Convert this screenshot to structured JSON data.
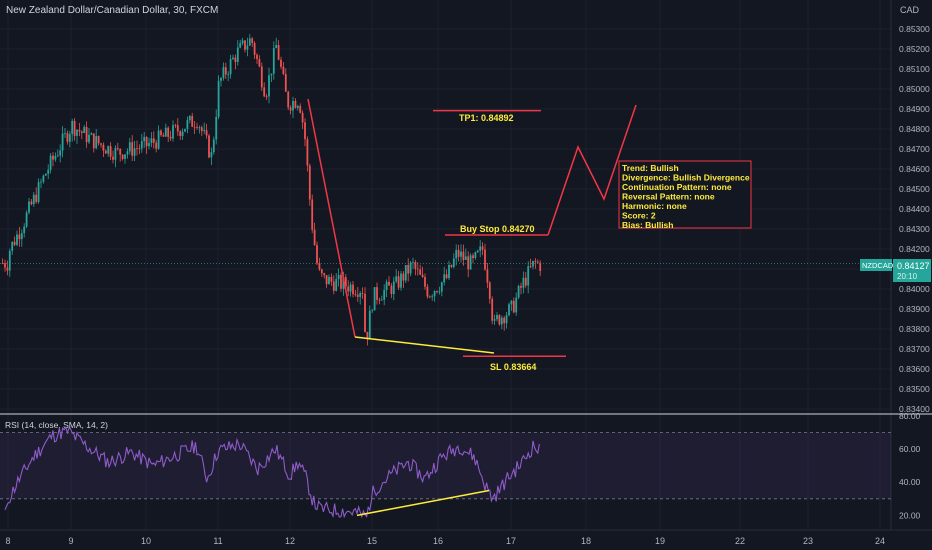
{
  "header": {
    "symbol_title": "New Zealand Dollar/Canadian Dollar, 30, FXCM",
    "currency": "CAD"
  },
  "price_axis": {
    "ticks": [
      "0.85300",
      "0.85200",
      "0.85100",
      "0.85000",
      "0.84900",
      "0.84800",
      "0.84700",
      "0.84600",
      "0.84500",
      "0.84400",
      "0.84300",
      "0.84200",
      "0.84100",
      "0.84000",
      "0.83900",
      "0.83800",
      "0.83700",
      "0.83600",
      "0.83500",
      "0.83400"
    ],
    "current_label": "NZDCAD",
    "current_price": "0.84127",
    "countdown": "20:10"
  },
  "time_axis": {
    "labels": [
      "8",
      "9",
      "10",
      "11",
      "12",
      "15",
      "16",
      "17",
      "18",
      "19",
      "22",
      "23",
      "24"
    ]
  },
  "annotations": {
    "tp_label": "TP1: 0.84892",
    "buy_label": "Buy Stop 0.84270",
    "sl_label": "SL 0.83664",
    "analysis_lines": [
      "Trend: Bullish",
      "Divergence: Bullish Divergence",
      "Continuation Pattern: none",
      "Reversal Pattern: none",
      "Harmonic: none",
      "Score: 2",
      "Bias: Bullish"
    ]
  },
  "rsi_pane": {
    "title": "RSI (14, close, SMA, 14, 2)",
    "ticks": [
      "80.00",
      "60.00",
      "40.00",
      "20.00"
    ]
  },
  "colors": {
    "background": "#131722",
    "up": "#26a69a",
    "down": "#ef5350",
    "rsi_line": "#8e5cc9",
    "divergence": "#ffeb3b",
    "annotation": "#f23645"
  },
  "chart_data": [
    {
      "type": "candlestick",
      "title": "New Zealand Dollar/Canadian Dollar, 30, FXCM",
      "ylabel": "CAD",
      "ylim": [
        0.834,
        0.8536
      ],
      "x_day_labels": [
        "8",
        "9",
        "10",
        "11",
        "12",
        "15",
        "16",
        "17",
        "18",
        "19",
        "22",
        "23",
        "24"
      ],
      "close_path": [
        {
          "x": 7.9,
          "y": 0.8413
        },
        {
          "x": 8.2,
          "y": 0.8431
        },
        {
          "x": 8.6,
          "y": 0.8459
        },
        {
          "x": 9.0,
          "y": 0.8482
        },
        {
          "x": 9.25,
          "y": 0.8475
        },
        {
          "x": 9.6,
          "y": 0.8468
        },
        {
          "x": 10.0,
          "y": 0.8472
        },
        {
          "x": 10.35,
          "y": 0.8478
        },
        {
          "x": 10.7,
          "y": 0.8485
        },
        {
          "x": 10.9,
          "y": 0.8466
        },
        {
          "x": 11.0,
          "y": 0.8503
        },
        {
          "x": 11.25,
          "y": 0.8518
        },
        {
          "x": 11.45,
          "y": 0.8525
        },
        {
          "x": 11.65,
          "y": 0.8498
        },
        {
          "x": 11.8,
          "y": 0.8522
        },
        {
          "x": 11.95,
          "y": 0.8493
        },
        {
          "x": 12.3,
          "y": 0.8495
        },
        {
          "x": 12.5,
          "y": 0.8478
        },
        {
          "x": 12.75,
          "y": 0.8435
        },
        {
          "x": 13.0,
          "y": 0.8408
        },
        {
          "x": 14.8,
          "y": 0.8378
        },
        {
          "x": 15.0,
          "y": 0.8396
        },
        {
          "x": 15.35,
          "y": 0.8402
        },
        {
          "x": 15.6,
          "y": 0.8412
        },
        {
          "x": 15.85,
          "y": 0.8398
        },
        {
          "x": 16.1,
          "y": 0.8405
        },
        {
          "x": 16.25,
          "y": 0.8418
        },
        {
          "x": 16.45,
          "y": 0.8412
        },
        {
          "x": 16.6,
          "y": 0.842
        },
        {
          "x": 16.7,
          "y": 0.8399
        },
        {
          "x": 16.75,
          "y": 0.838
        },
        {
          "x": 16.8,
          "y": 0.8385
        },
        {
          "x": 17.0,
          "y": 0.839
        },
        {
          "x": 17.15,
          "y": 0.8403
        },
        {
          "x": 17.3,
          "y": 0.8413
        },
        {
          "x": 17.4,
          "y": 0.8412
        }
      ],
      "swing_highs": [
        {
          "x": 11.8,
          "y": 0.8536
        }
      ],
      "swing_lows": [
        {
          "x": 14.85,
          "y": 0.8376
        },
        {
          "x": 16.75,
          "y": 0.8368
        }
      ],
      "levels": {
        "tp": 0.84892,
        "buy_stop": 0.8427,
        "stop_loss": 0.83664,
        "current": 0.84127
      },
      "projection": [
        {
          "x": 17.6,
          "y": 0.8427
        },
        {
          "x": 17.95,
          "y": 0.8471
        },
        {
          "x": 18.25,
          "y": 0.8445
        },
        {
          "x": 18.65,
          "y": 0.8491
        }
      ],
      "trendlines": [
        {
          "from": {
            "x": 12.3,
            "y": 0.8495
          },
          "to": {
            "x": 14.85,
            "y": 0.8376
          }
        },
        {
          "from": {
            "x": 14.85,
            "y": 0.8376
          },
          "to": {
            "x": 16.75,
            "y": 0.8368
          }
        }
      ]
    },
    {
      "type": "line",
      "title": "RSI (14, close, SMA, 14, 2)",
      "ylim": [
        15,
        82
      ],
      "bands": [
        70,
        30
      ],
      "points": [
        {
          "x": 7.9,
          "y": 22
        },
        {
          "x": 8.15,
          "y": 40
        },
        {
          "x": 8.4,
          "y": 55
        },
        {
          "x": 8.7,
          "y": 68
        },
        {
          "x": 8.95,
          "y": 71
        },
        {
          "x": 9.2,
          "y": 62
        },
        {
          "x": 9.5,
          "y": 52
        },
        {
          "x": 9.8,
          "y": 58
        },
        {
          "x": 10.1,
          "y": 50
        },
        {
          "x": 10.4,
          "y": 56
        },
        {
          "x": 10.7,
          "y": 62
        },
        {
          "x": 10.85,
          "y": 42
        },
        {
          "x": 11.0,
          "y": 59
        },
        {
          "x": 11.3,
          "y": 63
        },
        {
          "x": 11.55,
          "y": 48
        },
        {
          "x": 11.8,
          "y": 60
        },
        {
          "x": 12.0,
          "y": 44
        },
        {
          "x": 12.3,
          "y": 52
        },
        {
          "x": 12.6,
          "y": 42
        },
        {
          "x": 12.85,
          "y": 28
        },
        {
          "x": 13.1,
          "y": 24
        },
        {
          "x": 14.4,
          "y": 22
        },
        {
          "x": 14.8,
          "y": 19
        },
        {
          "x": 15.05,
          "y": 36
        },
        {
          "x": 15.3,
          "y": 45
        },
        {
          "x": 15.55,
          "y": 52
        },
        {
          "x": 15.8,
          "y": 42
        },
        {
          "x": 16.05,
          "y": 55
        },
        {
          "x": 16.3,
          "y": 62
        },
        {
          "x": 16.5,
          "y": 55
        },
        {
          "x": 16.65,
          "y": 38
        },
        {
          "x": 16.75,
          "y": 30
        },
        {
          "x": 16.95,
          "y": 42
        },
        {
          "x": 17.15,
          "y": 52
        },
        {
          "x": 17.3,
          "y": 62
        },
        {
          "x": 17.4,
          "y": 58
        }
      ],
      "divergence_line": {
        "from": {
          "x": 14.8,
          "y": 19
        },
        "to": {
          "x": 16.7,
          "y": 35
        }
      }
    }
  ]
}
